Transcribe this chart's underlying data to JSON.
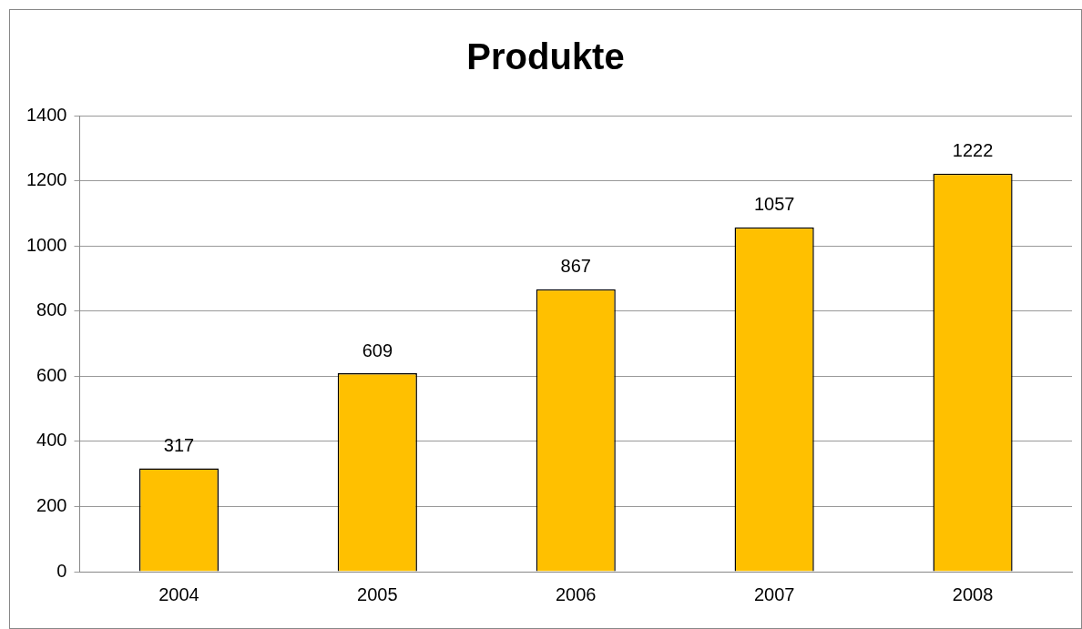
{
  "chart_data": {
    "type": "bar",
    "title": "Produkte",
    "categories": [
      "2004",
      "2005",
      "2006",
      "2007",
      "2008"
    ],
    "values": [
      317,
      609,
      867,
      1057,
      1222
    ],
    "color": "#ffc000",
    "ylim": [
      0,
      1400
    ],
    "yticks": [
      0,
      200,
      400,
      600,
      800,
      1000,
      1200,
      1400
    ],
    "grid": "y",
    "legend": false,
    "data_labels": true
  }
}
